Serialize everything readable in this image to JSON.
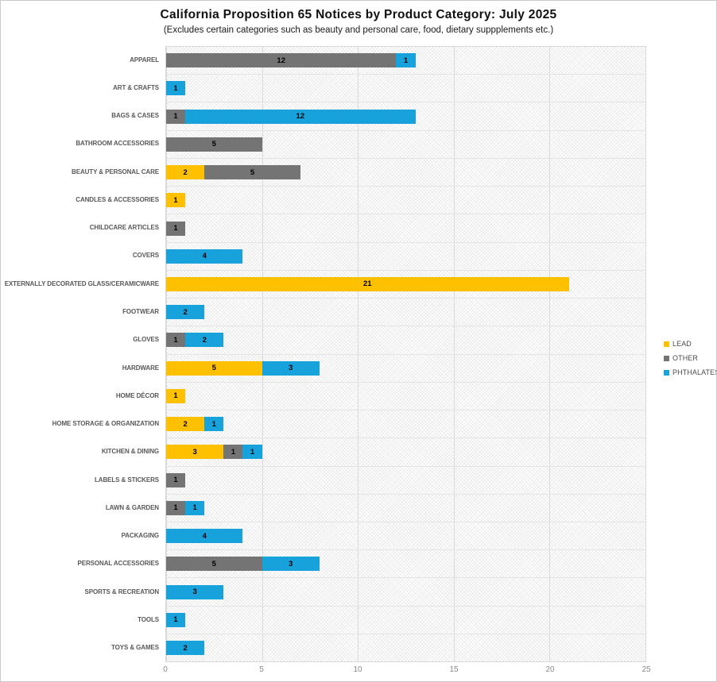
{
  "chart_data": {
    "type": "bar",
    "orientation": "horizontal",
    "stacked": true,
    "title": "California Proposition 65 Notices by Product Category: July 2025",
    "subtitle": "(Excludes certain categories such as beauty and personal care, food, dietary suppplements etc.)",
    "categories": [
      "APPAREL",
      "ART & CRAFTS",
      "BAGS & CASES",
      "BATHROOM ACCESSORIES",
      "BEAUTY & PERSONAL CARE",
      "CANDLES & ACCESSORIES",
      "CHILDCARE ARTICLES",
      "COVERS",
      "EXTERNALLY DECORATED GLASS/CERAMICWARE",
      "FOOTWEAR",
      "GLOVES",
      "HARDWARE",
      "HOME DÉCOR",
      "HOME STORAGE & ORGANIZATION",
      "KITCHEN & DINING",
      "LABELS & STICKERS",
      "LAWN & GARDEN",
      "PACKAGING",
      "PERSONAL ACCESSORIES",
      "SPORTS & RECREATION",
      "TOOLS",
      "TOYS & GAMES"
    ],
    "series": [
      {
        "name": "LEAD",
        "color": "#FFC000",
        "values": [
          0,
          0,
          0,
          0,
          2,
          1,
          0,
          0,
          21,
          0,
          0,
          5,
          1,
          2,
          3,
          0,
          0,
          0,
          0,
          0,
          0,
          0
        ]
      },
      {
        "name": "OTHER",
        "color": "#747474",
        "values": [
          12,
          0,
          1,
          5,
          5,
          0,
          1,
          0,
          0,
          0,
          1,
          0,
          0,
          0,
          1,
          1,
          1,
          0,
          5,
          0,
          0,
          0
        ]
      },
      {
        "name": "PHTHALATES",
        "color": "#17A2DC",
        "values": [
          1,
          1,
          12,
          0,
          0,
          0,
          0,
          4,
          0,
          2,
          2,
          3,
          0,
          1,
          1,
          0,
          1,
          4,
          3,
          3,
          1,
          2
        ]
      }
    ],
    "x_ticks": [
      0,
      5,
      10,
      15,
      20,
      25
    ],
    "xlim": [
      0,
      25
    ],
    "data_labels": true,
    "grid": true,
    "legend_position": "right",
    "plot_background": "light-diagonal-crosshatch"
  }
}
